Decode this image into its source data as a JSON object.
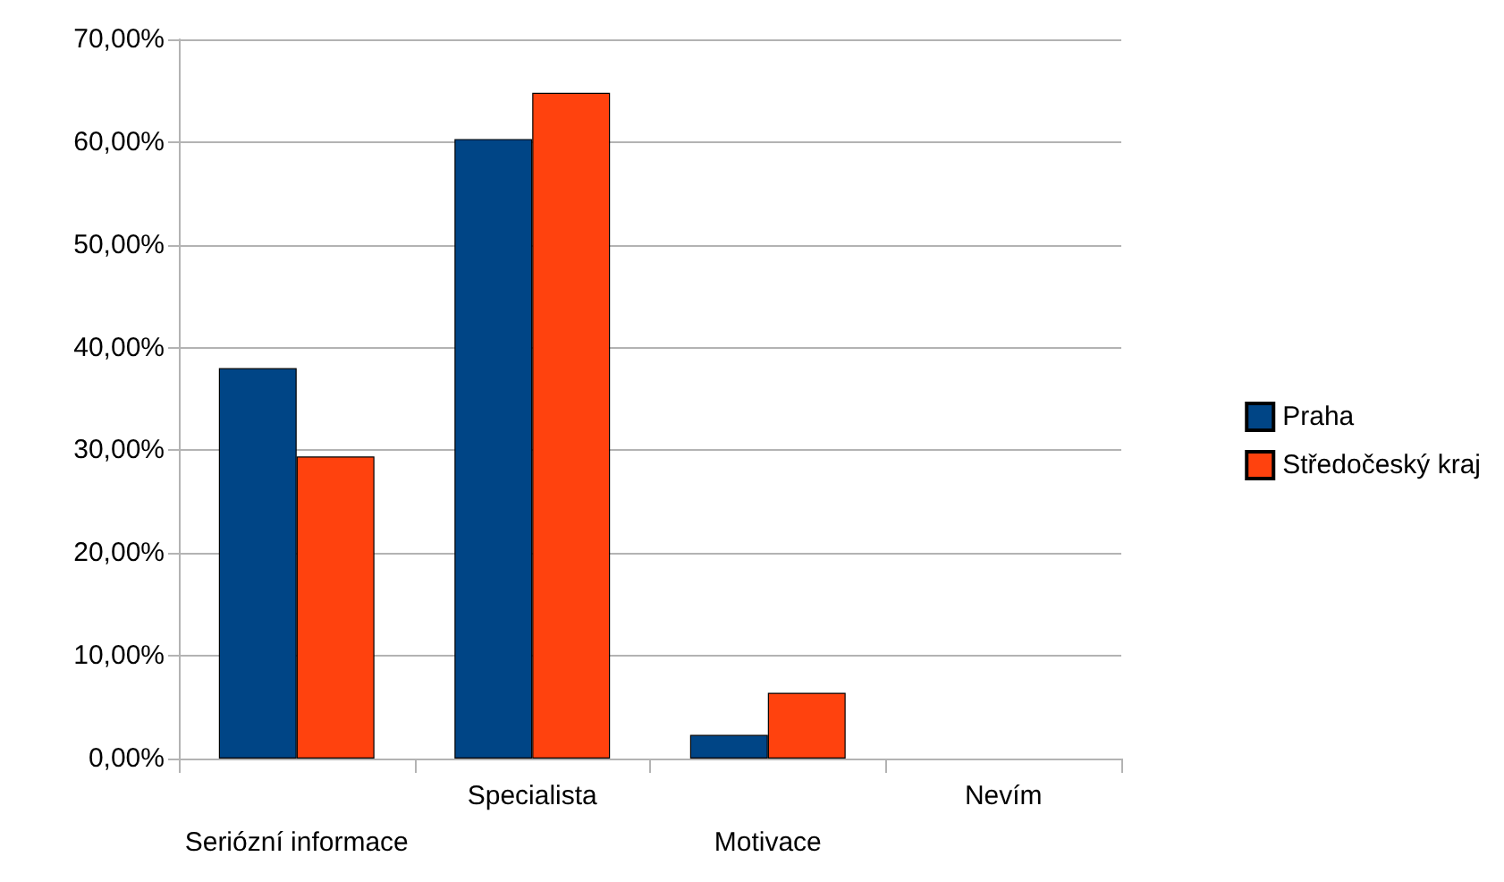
{
  "chart_data": {
    "type": "bar",
    "categories": [
      "Seriózní informace",
      "Specialista",
      "Motivace",
      "Nevím"
    ],
    "series": [
      {
        "name": "Praha",
        "color": "#004586",
        "values": [
          38.0,
          60.3,
          2.3,
          0
        ]
      },
      {
        "name": "Středočeský kraj",
        "color": "#ff420e",
        "values": [
          29.4,
          64.8,
          6.4,
          0
        ]
      }
    ],
    "ylim": [
      0,
      70
    ],
    "yticks": [
      {
        "value": 0,
        "label": "0,00%"
      },
      {
        "value": 10,
        "label": "10,00%"
      },
      {
        "value": 20,
        "label": "20,00%"
      },
      {
        "value": 30,
        "label": "30,00%"
      },
      {
        "value": 40,
        "label": "40,00%"
      },
      {
        "value": 50,
        "label": "50,00%"
      },
      {
        "value": 60,
        "label": "60,00%"
      },
      {
        "value": 70,
        "label": "70,00%"
      }
    ],
    "grid": "y",
    "legend": "right"
  }
}
